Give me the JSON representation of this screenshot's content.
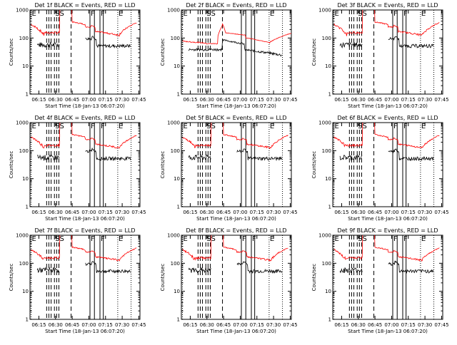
{
  "figure": {
    "x_ticks": [
      "06:15",
      "06:30",
      "06:45",
      "07:00",
      "07:15",
      "07:30",
      "07:45"
    ],
    "y_ticks": [
      "1",
      "10",
      "100",
      "1000"
    ],
    "ylabel": "Counts/sec",
    "colors": {
      "events": "#000000",
      "lld": "#ff0000",
      "axes": "#000000"
    }
  },
  "chart_data": [
    {
      "type": "line",
      "title": "Det 1f BLACK = Events, RED = LLD",
      "xlabel": "Start Time (18-Jan-13 06:07:20)",
      "ylabel": "Counts/sec",
      "x_range": [
        "06:07",
        "07:46"
      ],
      "y_scale": "log",
      "y_range": [
        1,
        1000
      ],
      "markers": [
        {
          "label": "E",
          "time": "06:08"
        },
        {
          "label": "S",
          "time": "06:29"
        },
        {
          "label": "S",
          "time": "06:33"
        },
        {
          "label": "F",
          "time": "07:01"
        },
        {
          "label": "F",
          "time": "07:10"
        },
        {
          "label": "E",
          "time": "07:26"
        }
      ]
    },
    {
      "type": "line",
      "title": "Det 2f BLACK = Events, RED = LLD",
      "xlabel": "Start Time (18-Jan-13 06:07:20)",
      "ylabel": "Counts/sec",
      "x_range": [
        "06:07",
        "07:46"
      ],
      "y_scale": "log",
      "y_range": [
        1,
        1000
      ],
      "markers": [
        {
          "label": "E",
          "time": "06:08"
        },
        {
          "label": "S",
          "time": "06:29"
        },
        {
          "label": "S",
          "time": "06:33"
        },
        {
          "label": "F",
          "time": "07:01"
        },
        {
          "label": "F",
          "time": "07:10"
        },
        {
          "label": "E",
          "time": "07:26"
        }
      ]
    },
    {
      "type": "line",
      "title": "Det 3f BLACK = Events, RED = LLD",
      "xlabel": "Start Time (18-Jan-13 06:07:20)",
      "ylabel": "Counts/sec",
      "x_range": [
        "06:07",
        "07:46"
      ],
      "y_scale": "log",
      "y_range": [
        1,
        1000
      ],
      "markers": [
        {
          "label": "E",
          "time": "06:08"
        },
        {
          "label": "S",
          "time": "06:29"
        },
        {
          "label": "S",
          "time": "06:33"
        },
        {
          "label": "F",
          "time": "07:01"
        },
        {
          "label": "F",
          "time": "07:10"
        },
        {
          "label": "E",
          "time": "07:26"
        }
      ]
    },
    {
      "type": "line",
      "title": "Det 4f BLACK = Events, RED = LLD",
      "xlabel": "Start Time (18-Jan-13 06:07:20)",
      "ylabel": "Counts/sec",
      "x_range": [
        "06:07",
        "07:46"
      ],
      "y_scale": "log",
      "y_range": [
        1,
        1000
      ],
      "markers": [
        {
          "label": "E",
          "time": "06:08"
        },
        {
          "label": "S",
          "time": "06:29"
        },
        {
          "label": "S",
          "time": "06:33"
        },
        {
          "label": "F",
          "time": "07:01"
        },
        {
          "label": "F",
          "time": "07:10"
        },
        {
          "label": "E",
          "time": "07:26"
        }
      ]
    },
    {
      "type": "line",
      "title": "Det 5f BLACK = Events, RED = LLD",
      "xlabel": "Start Time (18-Jan-13 06:07:20)",
      "ylabel": "Counts/sec",
      "x_range": [
        "06:07",
        "07:46"
      ],
      "y_scale": "log",
      "y_range": [
        1,
        1000
      ],
      "markers": [
        {
          "label": "E",
          "time": "06:08"
        },
        {
          "label": "S",
          "time": "06:29"
        },
        {
          "label": "S",
          "time": "06:33"
        },
        {
          "label": "F",
          "time": "07:01"
        },
        {
          "label": "F",
          "time": "07:10"
        },
        {
          "label": "E",
          "time": "07:26"
        }
      ]
    },
    {
      "type": "line",
      "title": "Det 6f BLACK = Events, RED = LLD",
      "xlabel": "Start Time (18-Jan-13 06:07:20)",
      "ylabel": "Counts/sec",
      "x_range": [
        "06:07",
        "07:46"
      ],
      "y_scale": "log",
      "y_range": [
        1,
        1000
      ],
      "markers": [
        {
          "label": "E",
          "time": "06:08"
        },
        {
          "label": "S",
          "time": "06:29"
        },
        {
          "label": "S",
          "time": "06:33"
        },
        {
          "label": "F",
          "time": "07:01"
        },
        {
          "label": "F",
          "time": "07:10"
        },
        {
          "label": "E",
          "time": "07:26"
        }
      ]
    },
    {
      "type": "line",
      "title": "Det 7f BLACK = Events, RED = LLD",
      "xlabel": "Start Time (18-Jan-13 06:07:20)",
      "ylabel": "Counts/sec",
      "x_range": [
        "06:07",
        "07:46"
      ],
      "y_scale": "log",
      "y_range": [
        1,
        1000
      ],
      "markers": [
        {
          "label": "E",
          "time": "06:08"
        },
        {
          "label": "S",
          "time": "06:29"
        },
        {
          "label": "S",
          "time": "06:33"
        },
        {
          "label": "F",
          "time": "07:01"
        },
        {
          "label": "F",
          "time": "07:10"
        },
        {
          "label": "E",
          "time": "07:26"
        }
      ]
    },
    {
      "type": "line",
      "title": "Det 8f BLACK = Events, RED = LLD",
      "xlabel": "Start Time (18-Jan-13 06:07:20)",
      "ylabel": "Counts/sec",
      "x_range": [
        "06:07",
        "07:46"
      ],
      "y_scale": "log",
      "y_range": [
        1,
        1000
      ],
      "markers": [
        {
          "label": "E",
          "time": "06:08"
        },
        {
          "label": "S",
          "time": "06:29"
        },
        {
          "label": "S",
          "time": "06:33"
        },
        {
          "label": "F",
          "time": "07:01"
        },
        {
          "label": "F",
          "time": "07:10"
        },
        {
          "label": "E",
          "time": "07:26"
        }
      ]
    },
    {
      "type": "line",
      "title": "Det 9f BLACK = Events, RED = LLD",
      "xlabel": "Start Time (18-Jan-13 06:07:20)",
      "ylabel": "Counts/sec",
      "x_range": [
        "06:07",
        "07:46"
      ],
      "y_scale": "log",
      "y_range": [
        1,
        1000
      ],
      "markers": [
        {
          "label": "E",
          "time": "06:08"
        },
        {
          "label": "S",
          "time": "06:29"
        },
        {
          "label": "S",
          "time": "06:33"
        },
        {
          "label": "F",
          "time": "07:01"
        },
        {
          "label": "F",
          "time": "07:10"
        },
        {
          "label": "E",
          "time": "07:26"
        }
      ]
    }
  ]
}
